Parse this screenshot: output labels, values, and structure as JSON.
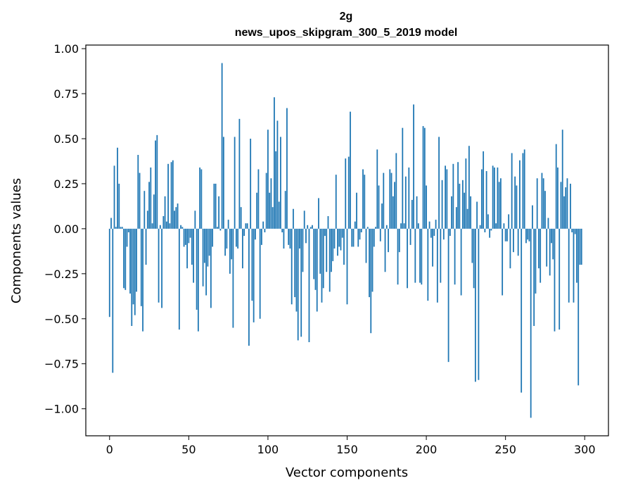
{
  "chart_data": {
    "type": "bar",
    "title": "2g",
    "subtitle": "news_upos_skipgram_300_5_2019 model",
    "xlabel": "Vector components",
    "ylabel": "Components values",
    "xlim": [
      -15,
      315
    ],
    "ylim": [
      -1.15,
      1.02
    ],
    "xticks": [
      0,
      50,
      100,
      150,
      200,
      250,
      300
    ],
    "xtick_labels": [
      "0",
      "50",
      "100",
      "150",
      "200",
      "250",
      "300"
    ],
    "yticks": [
      -1.0,
      -0.75,
      -0.5,
      -0.25,
      0.0,
      0.25,
      0.5,
      0.75,
      1.0
    ],
    "ytick_labels": [
      "−1.00",
      "−0.75",
      "−0.50",
      "−0.25",
      "0.00",
      "0.25",
      "0.50",
      "0.75",
      "1.00"
    ],
    "bar_color": "#1f77b4",
    "values": [
      -0.49,
      0.06,
      -0.8,
      0.35,
      0.01,
      0.45,
      0.25,
      0.01,
      0.01,
      -0.33,
      -0.34,
      -0.1,
      -0.02,
      -0.36,
      -0.54,
      -0.42,
      -0.48,
      -0.35,
      0.41,
      0.31,
      -0.43,
      -0.57,
      0.21,
      -0.2,
      0.1,
      0.26,
      0.34,
      0.03,
      0.19,
      0.49,
      0.52,
      -0.41,
      0.02,
      -0.44,
      0.07,
      0.18,
      0.04,
      0.36,
      0.03,
      0.37,
      0.38,
      0.1,
      0.12,
      0.14,
      -0.56,
      0.02,
      0.01,
      -0.1,
      -0.09,
      -0.22,
      -0.08,
      -0.05,
      -0.2,
      -0.3,
      0.1,
      -0.45,
      -0.57,
      0.34,
      0.33,
      -0.32,
      -0.19,
      -0.37,
      -0.21,
      -0.15,
      -0.44,
      -0.1,
      0.25,
      0.25,
      0.01,
      0.18,
      -0.01,
      0.92,
      0.51,
      -0.15,
      -0.11,
      0.05,
      -0.25,
      -0.17,
      -0.55,
      0.51,
      -0.1,
      -0.11,
      0.61,
      0.12,
      -0.22,
      -0.04,
      0.03,
      0.03,
      -0.65,
      0.5,
      -0.4,
      -0.52,
      -0.06,
      0.2,
      0.33,
      -0.5,
      -0.09,
      0.04,
      -0.02,
      0.31,
      0.55,
      0.2,
      0.28,
      0.12,
      0.73,
      0.43,
      0.6,
      0.15,
      0.51,
      -0.02,
      -0.11,
      0.21,
      0.67,
      -0.09,
      -0.11,
      -0.42,
      0.11,
      -0.38,
      -0.46,
      -0.62,
      -0.11,
      -0.6,
      -0.24,
      0.1,
      -0.08,
      0.02,
      -0.63,
      0.01,
      0.02,
      -0.28,
      -0.34,
      -0.46,
      0.17,
      -0.25,
      -0.41,
      -0.33,
      -0.04,
      -0.24,
      0.07,
      -0.35,
      -0.24,
      -0.18,
      -0.11,
      0.3,
      -0.15,
      -0.1,
      -0.12,
      -0.05,
      -0.2,
      0.39,
      -0.42,
      0.4,
      0.65,
      -0.1,
      -0.1,
      0.04,
      0.2,
      -0.1,
      -0.06,
      -0.02,
      0.33,
      0.3,
      -0.19,
      0.01,
      -0.38,
      -0.58,
      -0.35,
      -0.1,
      0.01,
      0.44,
      0.24,
      -0.07,
      0.14,
      0.31,
      -0.24,
      0.02,
      -0.13,
      0.33,
      0.31,
      0.18,
      0.26,
      0.42,
      -0.31,
      -0.13,
      0.03,
      0.56,
      0.03,
      0.29,
      -0.33,
      0.34,
      -0.09,
      0.16,
      0.69,
      -0.3,
      0.18,
      0.03,
      -0.3,
      -0.31,
      0.57,
      0.56,
      0.24,
      -0.4,
      0.04,
      -0.05,
      -0.21,
      -0.04,
      0.05,
      -0.41,
      0.51,
      -0.3,
      0.27,
      -0.06,
      0.35,
      0.33,
      -0.74,
      -0.04,
      0.18,
      0.36,
      -0.31,
      0.12,
      0.37,
      0.25,
      -0.37,
      0.27,
      0.2,
      0.39,
      0.11,
      0.46,
      0.18,
      -0.19,
      -0.33,
      -0.85,
      0.15,
      -0.84,
      0.02,
      0.33,
      0.43,
      -0.02,
      0.32,
      0.08,
      -0.05,
      -0.01,
      0.35,
      0.34,
      0.03,
      0.34,
      0.26,
      0.28,
      -0.37,
      0.03,
      -0.07,
      -0.07,
      0.08,
      -0.22,
      0.42,
      -0.13,
      0.29,
      0.24,
      -0.15,
      0.38,
      -0.91,
      0.42,
      0.44,
      -0.08,
      -0.06,
      -0.07,
      -1.05,
      0.13,
      -0.54,
      -0.36,
      0.28,
      -0.22,
      -0.3,
      0.31,
      0.28,
      0.21,
      -0.21,
      0.06,
      -0.26,
      -0.08,
      -0.17,
      -0.57,
      0.47,
      0.34,
      -0.56,
      0.26,
      0.55,
      0.18,
      0.23,
      0.28,
      -0.41,
      0.25,
      -0.02,
      -0.41,
      -0.03,
      -0.3,
      -0.87,
      -0.2,
      -0.2
    ]
  }
}
